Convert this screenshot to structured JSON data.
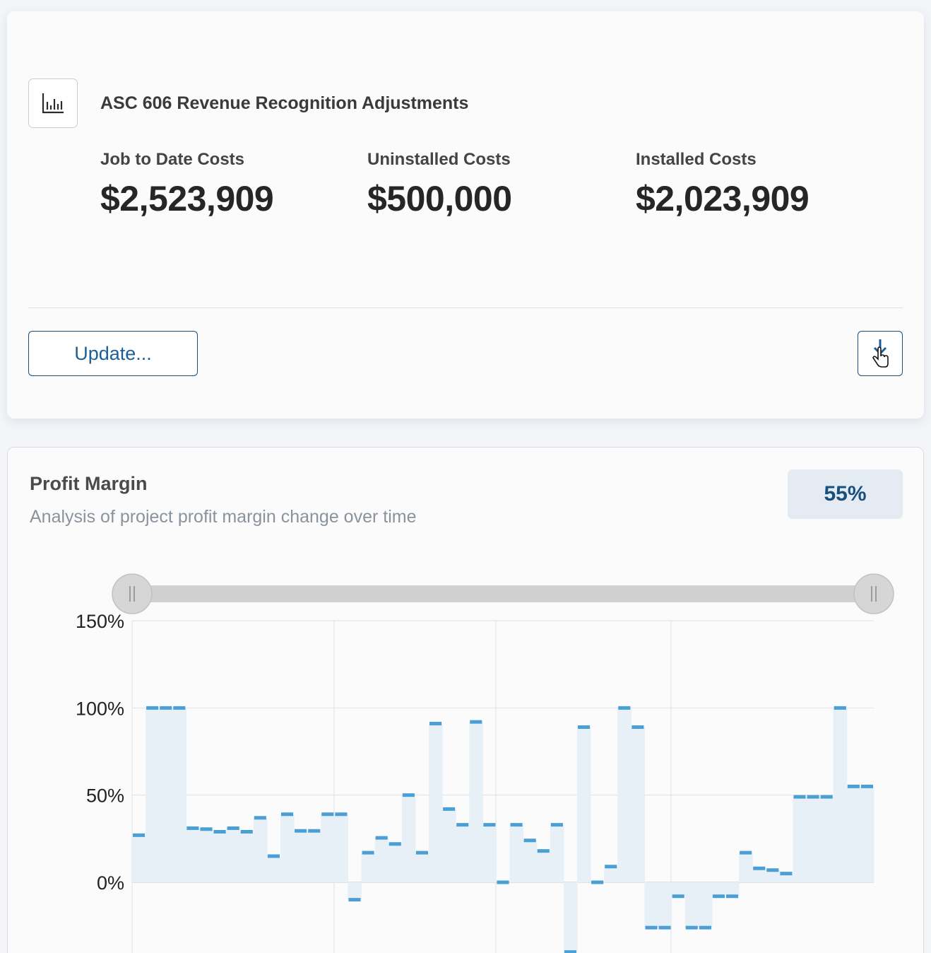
{
  "summary": {
    "title": "ASC 606 Revenue Recognition Adjustments",
    "icon": "bar-chart-icon",
    "metrics": [
      {
        "label": "Job to Date Costs",
        "value": "$2,523,909"
      },
      {
        "label": "Uninstalled Costs",
        "value": "$500,000"
      },
      {
        "label": "Installed Costs",
        "value": "$2,023,909"
      }
    ],
    "update_label": "Update...",
    "download_icon": "download-icon"
  },
  "profit": {
    "title": "Profit Margin",
    "subtitle": "Analysis of project profit margin change over time",
    "badge": "55%"
  },
  "chart_data": {
    "type": "area",
    "step": true,
    "y_tick_labels": [
      "150%",
      "100%",
      "50%",
      "0%"
    ],
    "ylim": [
      -40,
      150
    ],
    "range_slider": true,
    "colors": {
      "line": "#4a9fd4",
      "fill": "#e6f0f6"
    },
    "values": [
      27,
      100,
      100,
      100,
      31,
      30.5,
      29,
      31,
      29,
      37,
      15,
      39,
      29.5,
      29.5,
      39,
      39,
      -10,
      17,
      25.5,
      22,
      50,
      17,
      91,
      42,
      33,
      92,
      33,
      0,
      33,
      24,
      18,
      33,
      -40,
      89,
      0,
      9,
      100,
      89,
      -26,
      -26,
      -8,
      -26,
      -26,
      -8,
      -8,
      17,
      8,
      7,
      5,
      49,
      49,
      49,
      100,
      55,
      55
    ],
    "grid": true
  }
}
